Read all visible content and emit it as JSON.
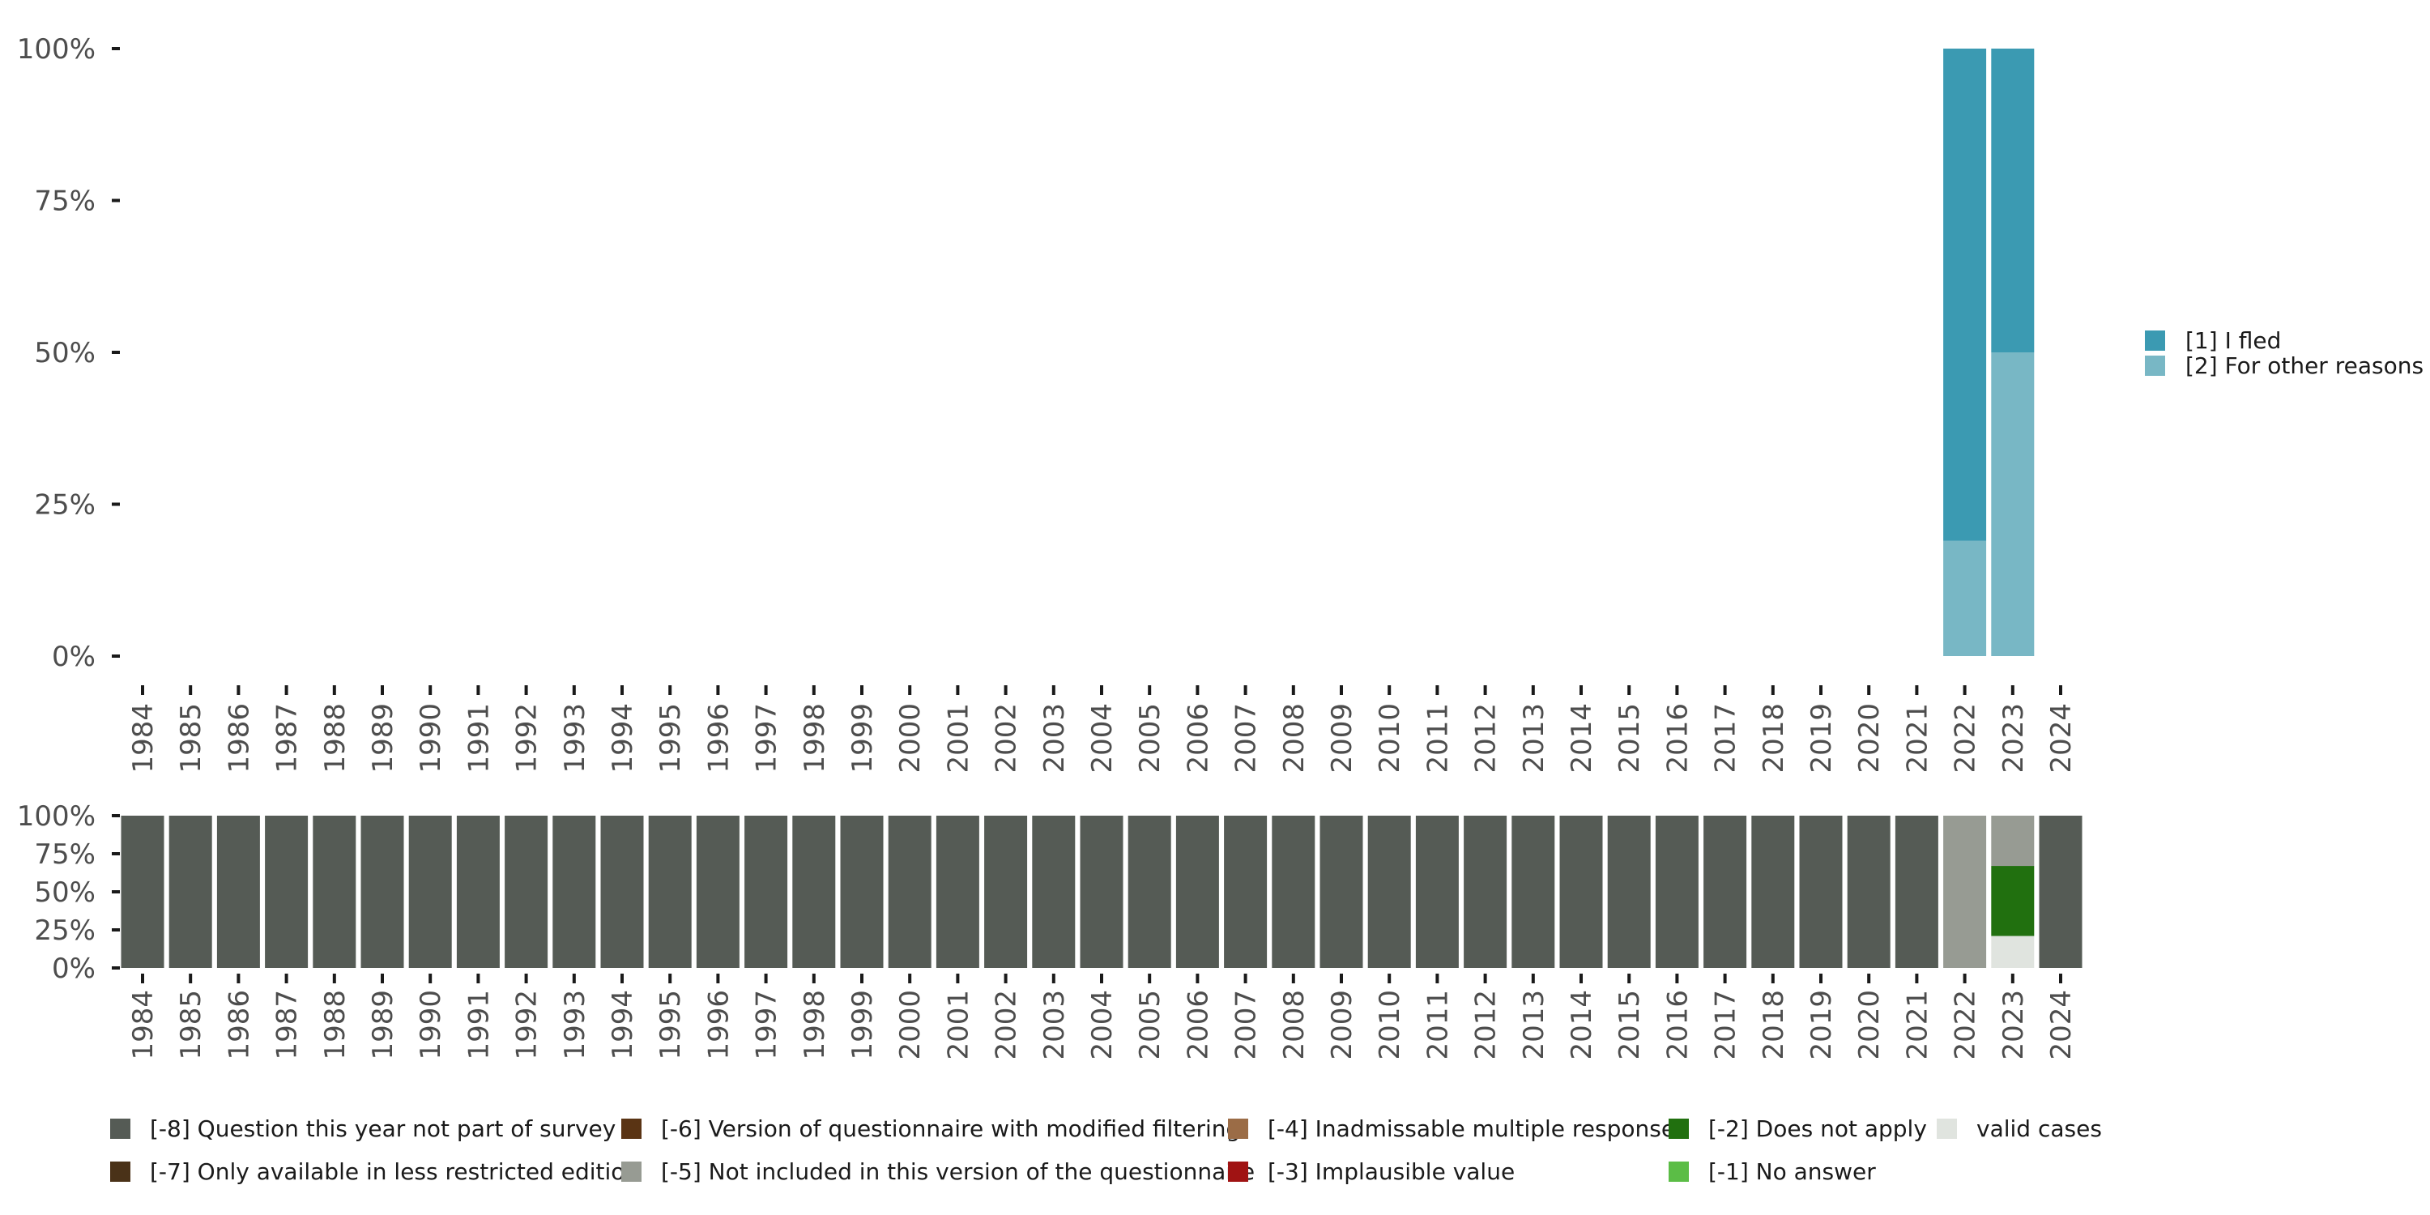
{
  "chart_data": [
    {
      "type": "bar",
      "stacked": true,
      "percent": true,
      "categories": [
        "1984",
        "1985",
        "1986",
        "1987",
        "1988",
        "1989",
        "1990",
        "1991",
        "1992",
        "1993",
        "1994",
        "1995",
        "1996",
        "1997",
        "1998",
        "1999",
        "2000",
        "2001",
        "2002",
        "2003",
        "2004",
        "2005",
        "2006",
        "2007",
        "2008",
        "2009",
        "2010",
        "2011",
        "2012",
        "2013",
        "2014",
        "2015",
        "2016",
        "2017",
        "2018",
        "2019",
        "2020",
        "2021",
        "2022",
        "2023",
        "2024"
      ],
      "yticks": [
        "0%",
        "25%",
        "50%",
        "75%",
        "100%"
      ],
      "ylim": [
        0,
        100
      ],
      "legend_position": "right",
      "series": [
        {
          "name": "[2] For other reasons",
          "color": "#78b7c5",
          "values": [
            0,
            0,
            0,
            0,
            0,
            0,
            0,
            0,
            0,
            0,
            0,
            0,
            0,
            0,
            0,
            0,
            0,
            0,
            0,
            0,
            0,
            0,
            0,
            0,
            0,
            0,
            0,
            0,
            0,
            0,
            0,
            0,
            0,
            0,
            0,
            0,
            0,
            0,
            19,
            50,
            0
          ]
        },
        {
          "name": "[1] I fled",
          "color": "#3b9ab2",
          "values": [
            0,
            0,
            0,
            0,
            0,
            0,
            0,
            0,
            0,
            0,
            0,
            0,
            0,
            0,
            0,
            0,
            0,
            0,
            0,
            0,
            0,
            0,
            0,
            0,
            0,
            0,
            0,
            0,
            0,
            0,
            0,
            0,
            0,
            0,
            0,
            0,
            0,
            0,
            81,
            50,
            0
          ]
        }
      ]
    },
    {
      "type": "bar",
      "stacked": true,
      "percent": true,
      "categories": [
        "1984",
        "1985",
        "1986",
        "1987",
        "1988",
        "1989",
        "1990",
        "1991",
        "1992",
        "1993",
        "1994",
        "1995",
        "1996",
        "1997",
        "1998",
        "1999",
        "2000",
        "2001",
        "2002",
        "2003",
        "2004",
        "2005",
        "2006",
        "2007",
        "2008",
        "2009",
        "2010",
        "2011",
        "2012",
        "2013",
        "2014",
        "2015",
        "2016",
        "2017",
        "2018",
        "2019",
        "2020",
        "2021",
        "2022",
        "2023",
        "2024"
      ],
      "yticks": [
        "0%",
        "25%",
        "50%",
        "75%",
        "100%"
      ],
      "ylim": [
        0,
        100
      ],
      "legend_position": "bottom",
      "series": [
        {
          "name": "valid cases",
          "color": "#e0e4df",
          "values": [
            0,
            0,
            0,
            0,
            0,
            0,
            0,
            0,
            0,
            0,
            0,
            0,
            0,
            0,
            0,
            0,
            0,
            0,
            0,
            0,
            0,
            0,
            0,
            0,
            0,
            0,
            0,
            0,
            0,
            0,
            0,
            0,
            0,
            0,
            0,
            0,
            0,
            0,
            0,
            21,
            0
          ]
        },
        {
          "name": "[-1] No answer",
          "color": "#5bbd46",
          "values": [
            0,
            0,
            0,
            0,
            0,
            0,
            0,
            0,
            0,
            0,
            0,
            0,
            0,
            0,
            0,
            0,
            0,
            0,
            0,
            0,
            0,
            0,
            0,
            0,
            0,
            0,
            0,
            0,
            0,
            0,
            0,
            0,
            0,
            0,
            0,
            0,
            0,
            0,
            0,
            0,
            0
          ]
        },
        {
          "name": "[-2] Does not apply",
          "color": "#21700f",
          "values": [
            0,
            0,
            0,
            0,
            0,
            0,
            0,
            0,
            0,
            0,
            0,
            0,
            0,
            0,
            0,
            0,
            0,
            0,
            0,
            0,
            0,
            0,
            0,
            0,
            0,
            0,
            0,
            0,
            0,
            0,
            0,
            0,
            0,
            0,
            0,
            0,
            0,
            0,
            0,
            46,
            0
          ]
        },
        {
          "name": "[-3] Implausible value",
          "color": "#a01313",
          "values": [
            0,
            0,
            0,
            0,
            0,
            0,
            0,
            0,
            0,
            0,
            0,
            0,
            0,
            0,
            0,
            0,
            0,
            0,
            0,
            0,
            0,
            0,
            0,
            0,
            0,
            0,
            0,
            0,
            0,
            0,
            0,
            0,
            0,
            0,
            0,
            0,
            0,
            0,
            0,
            0,
            0
          ]
        },
        {
          "name": "[-4] Inadmissable multiple response",
          "color": "#9b6c46",
          "values": [
            0,
            0,
            0,
            0,
            0,
            0,
            0,
            0,
            0,
            0,
            0,
            0,
            0,
            0,
            0,
            0,
            0,
            0,
            0,
            0,
            0,
            0,
            0,
            0,
            0,
            0,
            0,
            0,
            0,
            0,
            0,
            0,
            0,
            0,
            0,
            0,
            0,
            0,
            0,
            0,
            0
          ]
        },
        {
          "name": "[-5] Not included in this version of the questionnaire",
          "color": "#979b93",
          "values": [
            0,
            0,
            0,
            0,
            0,
            0,
            0,
            0,
            0,
            0,
            0,
            0,
            0,
            0,
            0,
            0,
            0,
            0,
            0,
            0,
            0,
            0,
            0,
            0,
            0,
            0,
            0,
            0,
            0,
            0,
            0,
            0,
            0,
            0,
            0,
            0,
            0,
            0,
            100,
            33,
            0
          ]
        },
        {
          "name": "[-6] Version of questionnaire with modified filtering",
          "color": "#5a3414",
          "values": [
            0,
            0,
            0,
            0,
            0,
            0,
            0,
            0,
            0,
            0,
            0,
            0,
            0,
            0,
            0,
            0,
            0,
            0,
            0,
            0,
            0,
            0,
            0,
            0,
            0,
            0,
            0,
            0,
            0,
            0,
            0,
            0,
            0,
            0,
            0,
            0,
            0,
            0,
            0,
            0,
            0
          ]
        },
        {
          "name": "[-7] Only available in less restricted edition",
          "color": "#4a3218",
          "values": [
            0,
            0,
            0,
            0,
            0,
            0,
            0,
            0,
            0,
            0,
            0,
            0,
            0,
            0,
            0,
            0,
            0,
            0,
            0,
            0,
            0,
            0,
            0,
            0,
            0,
            0,
            0,
            0,
            0,
            0,
            0,
            0,
            0,
            0,
            0,
            0,
            0,
            0,
            0,
            0,
            0
          ]
        },
        {
          "name": "[-8] Question this year not part of survey",
          "color": "#555b55",
          "values": [
            100,
            100,
            100,
            100,
            100,
            100,
            100,
            100,
            100,
            100,
            100,
            100,
            100,
            100,
            100,
            100,
            100,
            100,
            100,
            100,
            100,
            100,
            100,
            100,
            100,
            100,
            100,
            100,
            100,
            100,
            100,
            100,
            100,
            100,
            100,
            100,
            100,
            100,
            0,
            0,
            100
          ]
        }
      ],
      "legend_order": [
        "[-8] Question this year not part of survey",
        "[-7] Only available in less restricted edition",
        "[-6] Version of questionnaire with modified filtering",
        "[-5] Not included in this version of the questionnaire",
        "[-4] Inadmissable multiple response",
        "[-3] Implausible value",
        "[-2] Does not apply",
        "[-1] No answer",
        "valid cases"
      ]
    }
  ]
}
